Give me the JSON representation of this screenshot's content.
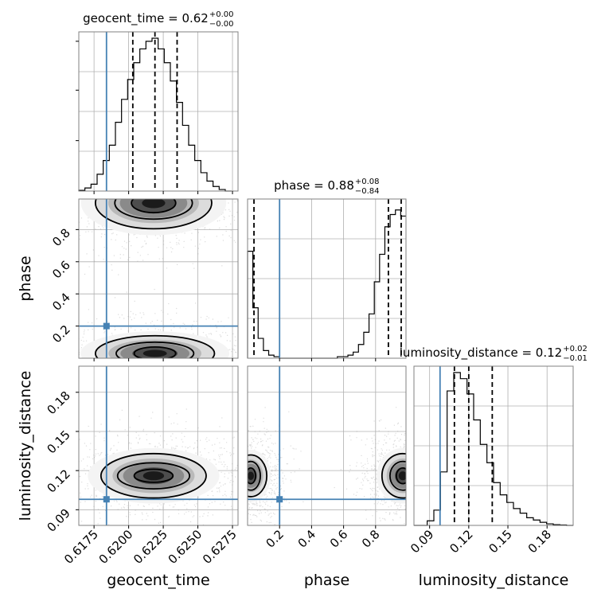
{
  "chart_data": {
    "type": "corner",
    "parameters": [
      "geocent_time",
      "phase",
      "luminosity_distance"
    ],
    "injection": {
      "geocent_time": 0.6184,
      "phase": 0.2,
      "luminosity_distance": 0.098
    },
    "titles": {
      "geocent_time": {
        "text": "geocent_time = 0.62",
        "sup": "+0.00",
        "sub": "−0.00"
      },
      "phase": {
        "text": "phase = 0.88",
        "sup": "+0.08",
        "sub": "−0.84"
      },
      "luminosity_distance": {
        "text": "luminosity_distance = 0.12",
        "sup": "+0.02",
        "sub": "−0.01"
      }
    },
    "axis_labels": {
      "geocent_time": "geocent_time",
      "phase": "phase",
      "luminosity_distance": "luminosity_distance"
    },
    "x_ticks": {
      "geocent_time": [
        "0.6175",
        "0.6200",
        "0.6225",
        "0.6250",
        "0.6275"
      ],
      "phase": [
        "0.2",
        "0.4",
        "0.6",
        "0.8"
      ],
      "luminosity_distance": [
        "0.09",
        "0.12",
        "0.15",
        "0.18"
      ]
    },
    "y_ticks": {
      "phase": [
        "0.2",
        "0.4",
        "0.6",
        "0.8"
      ],
      "luminosity_distance": [
        "0.09",
        "0.12",
        "0.15",
        "0.18"
      ]
    },
    "ranges": {
      "geocent_time": [
        0.6164,
        0.6279
      ],
      "phase": [
        0.0,
        0.99
      ],
      "luminosity_distance": [
        0.078,
        0.2
      ]
    },
    "quantiles": {
      "geocent_time": [
        0.6203,
        0.6219,
        0.6235
      ],
      "phase": [
        0.04,
        0.88,
        0.96
      ],
      "luminosity_distance": [
        0.109,
        0.12,
        0.138
      ]
    },
    "histograms": {
      "geocent_time": {
        "bins": [
          0.6164,
          0.62742
        ],
        "counts": [
          0.005,
          0.02,
          0.045,
          0.11,
          0.2,
          0.3,
          0.45,
          0.6,
          0.73,
          0.84,
          0.93,
          0.98,
          1.0,
          0.93,
          0.84,
          0.72,
          0.58,
          0.43,
          0.3,
          0.2,
          0.12,
          0.065,
          0.03,
          0.01,
          0.0
        ]
      },
      "phase": {
        "bins": [
          0.0,
          0.99
        ],
        "counts": [
          0.7,
          0.33,
          0.13,
          0.05,
          0.02,
          0.01,
          0.0,
          0.0,
          0.0,
          0.0,
          0.0,
          0.0,
          0.0,
          0.0,
          0.0,
          0.0,
          0.0,
          0.01,
          0.01,
          0.02,
          0.04,
          0.09,
          0.17,
          0.29,
          0.5,
          0.68,
          0.86,
          0.94,
          0.97,
          0.93
        ]
      },
      "luminosity_distance": {
        "bins": [
          0.078,
          0.2
        ],
        "counts": [
          0.0,
          0.0,
          0.03,
          0.1,
          0.35,
          0.88,
          1.0,
          0.96,
          0.86,
          0.69,
          0.53,
          0.41,
          0.28,
          0.2,
          0.15,
          0.11,
          0.08,
          0.05,
          0.035,
          0.02,
          0.01,
          0.005,
          0.003,
          0.0
        ]
      }
    },
    "contours_2d": {
      "phase_vs_geocent_time": {
        "modes": [
          {
            "center": [
              0.6218,
              0.965
            ],
            "levels": [
              [
                0.0016,
                0.06
              ],
              [
                0.0028,
                0.1
              ],
              [
                0.0042,
                0.16
              ]
            ]
          },
          {
            "center": [
              0.6219,
              0.03
            ],
            "levels": [
              [
                0.0015,
                0.04
              ],
              [
                0.0028,
                0.07
              ],
              [
                0.0043,
                0.11
              ]
            ]
          }
        ]
      },
      "luminosity_distance_vs_geocent_time": {
        "modes": [
          {
            "center": [
              0.6218,
              0.116
            ],
            "levels": [
              [
                0.0014,
                0.005
              ],
              [
                0.0026,
                0.01
              ],
              [
                0.0038,
                0.017
              ]
            ]
          }
        ]
      },
      "luminosity_distance_vs_phase": {
        "modes": [
          {
            "center": [
              0.97,
              0.116
            ],
            "levels": [
              [
                0.04,
                0.006
              ],
              [
                0.08,
                0.011
              ],
              [
                0.13,
                0.017
              ]
            ]
          },
          {
            "center": [
              0.02,
              0.116
            ],
            "levels": [
              [
                0.03,
                0.006
              ],
              [
                0.06,
                0.011
              ],
              [
                0.1,
                0.016
              ]
            ]
          }
        ]
      }
    },
    "grid": true,
    "colors": {
      "injection": "#4682b4",
      "hist": "#000000",
      "grid": "#b0b0b0",
      "scatter": "#9a9a9a"
    }
  }
}
